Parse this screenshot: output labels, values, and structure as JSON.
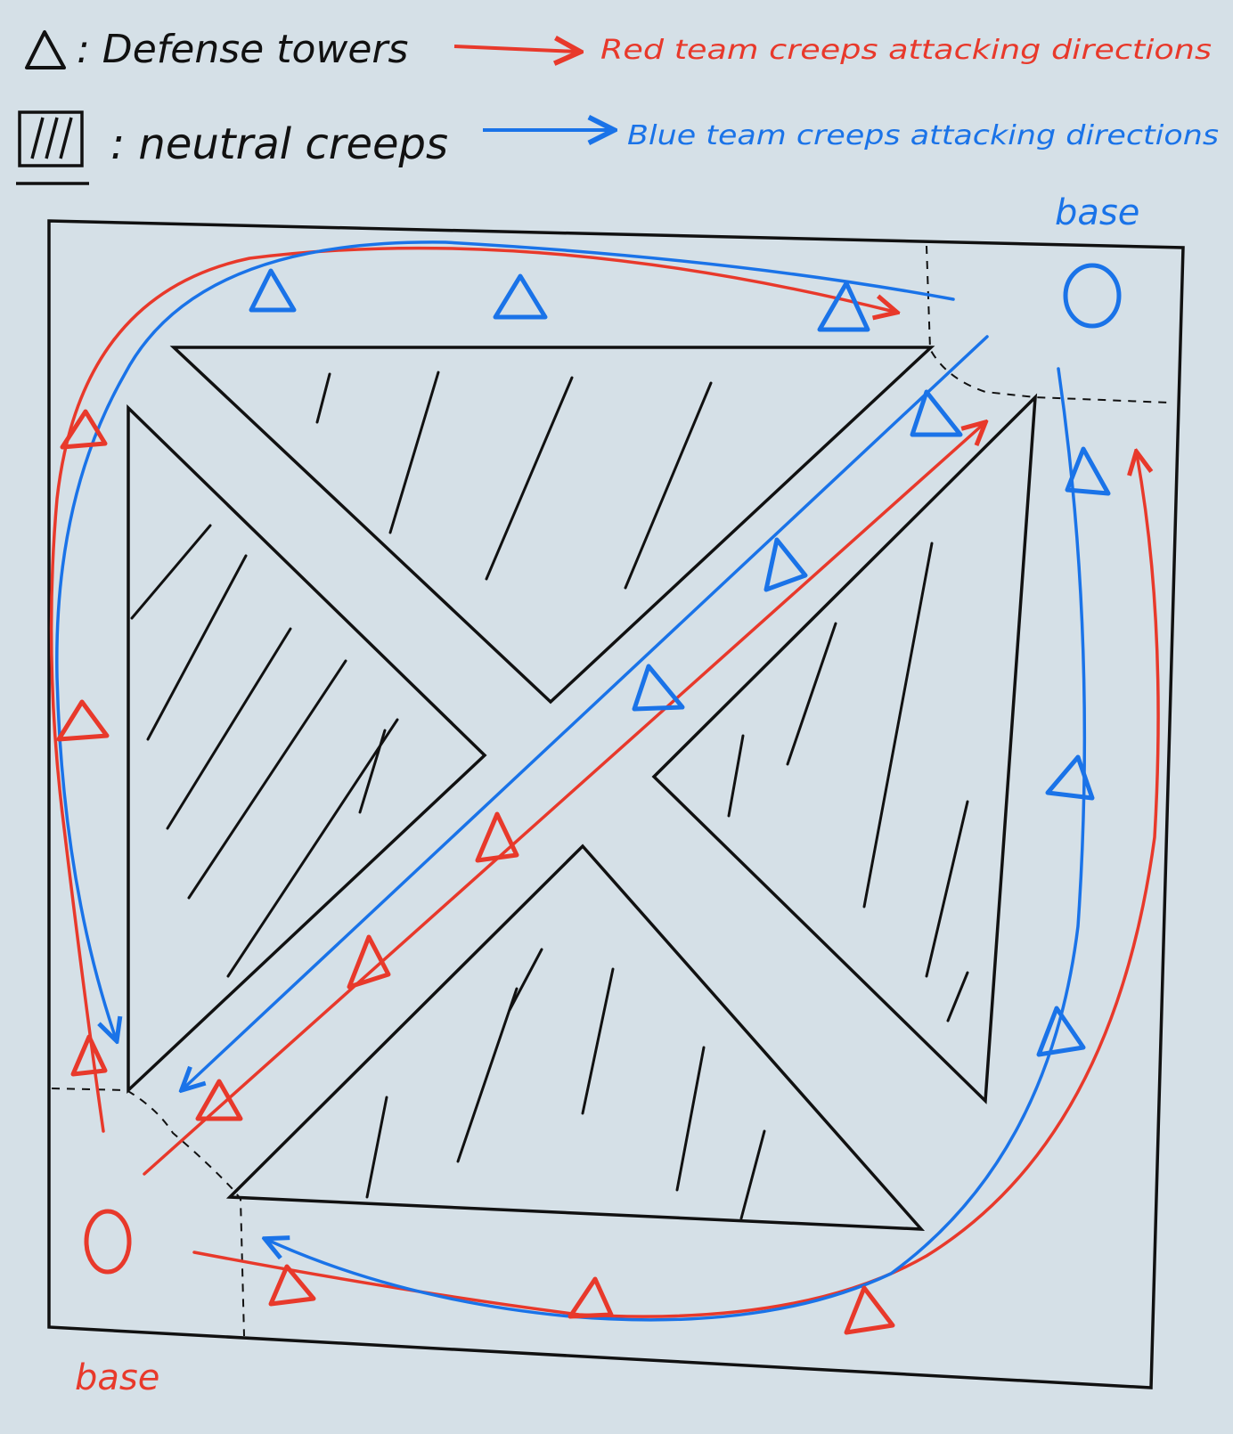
{
  "legend": {
    "tower_label": ": Defense towers",
    "neutral_label": ": neutral creeps",
    "red_label": "Red team creeps attacking directions",
    "blue_label": "Blue team creeps attacking directions"
  },
  "bases": {
    "blue_label": "base",
    "red_label": "base"
  },
  "colors": {
    "red": "#e8392b",
    "blue": "#1a73e8",
    "ink": "#111111",
    "paper": "#d5e0e7"
  },
  "map_elements": {
    "blue_base_icon": "blue-base-circle",
    "red_base_icon": "red-base-circle",
    "tower_icon": "triangle",
    "neutral_icon": "hatched-box"
  }
}
